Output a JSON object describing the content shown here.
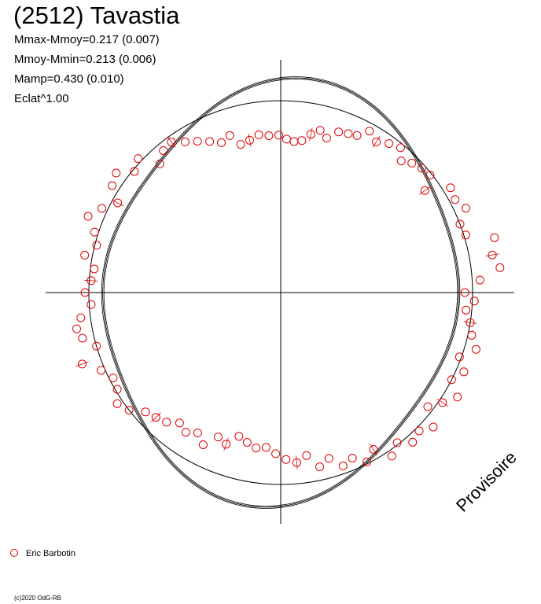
{
  "header": {
    "title": "(2512) Tavastia",
    "stats": [
      "Mmax-Mmoy=0.217 (0.007)",
      "Mmoy-Mmin=0.213 (0.006)",
      "Mamp=0.430 (0.010)",
      "Eclat^1.00"
    ]
  },
  "legend": {
    "observer": "Eric Barbotin"
  },
  "footer": {
    "copyright": "(c)2020 OdG-RB"
  },
  "watermark": "Provisoire",
  "chart_data": {
    "type": "scatter",
    "coordinate_system": "polar (rotational phase around center, brightness as radius)",
    "grid": false,
    "axes": "cross through center",
    "series": [
      {
        "name": "Eric Barbotin",
        "marker": "open-circle",
        "color": "#e00000",
        "points": [
          {
            "phase": 0.0,
            "r": 0.96
          },
          {
            "phase": 0.01,
            "r": 1.04
          },
          {
            "phase": 0.018,
            "r": 1.15
          },
          {
            "phase": 0.028,
            "r": 1.12
          },
          {
            "phase": 0.04,
            "r": 1.15
          },
          {
            "phase": 0.048,
            "r": 1.01
          },
          {
            "phase": 0.058,
            "r": 1.0
          },
          {
            "phase": 0.068,
            "r": 1.06
          },
          {
            "phase": 0.078,
            "r": 1.03
          },
          {
            "phase": 0.088,
            "r": 1.04
          },
          {
            "phase": 0.098,
            "r": 0.92
          },
          {
            "phase": 0.106,
            "r": 0.99
          },
          {
            "phase": 0.115,
            "r": 0.98
          },
          {
            "phase": 0.124,
            "r": 0.96
          },
          {
            "phase": 0.132,
            "r": 0.93
          },
          {
            "phase": 0.14,
            "r": 0.98
          },
          {
            "phase": 0.15,
            "r": 0.96
          },
          {
            "phase": 0.16,
            "r": 0.93
          },
          {
            "phase": 0.17,
            "r": 0.96
          },
          {
            "phase": 0.178,
            "r": 0.91
          },
          {
            "phase": 0.186,
            "r": 0.9
          },
          {
            "phase": 0.195,
            "r": 0.89
          },
          {
            "phase": 0.204,
            "r": 0.84
          },
          {
            "phase": 0.212,
            "r": 0.87
          },
          {
            "phase": 0.22,
            "r": 0.84
          },
          {
            "phase": 0.228,
            "r": 0.8
          },
          {
            "phase": 0.236,
            "r": 0.79
          },
          {
            "phase": 0.244,
            "r": 0.8
          },
          {
            "phase": 0.252,
            "r": 0.82
          },
          {
            "phase": 0.262,
            "r": 0.82
          },
          {
            "phase": 0.272,
            "r": 0.83
          },
          {
            "phase": 0.282,
            "r": 0.81
          },
          {
            "phase": 0.292,
            "r": 0.8
          },
          {
            "phase": 0.3,
            "r": 0.86
          },
          {
            "phase": 0.31,
            "r": 0.84
          },
          {
            "phase": 0.32,
            "r": 0.87
          },
          {
            "phase": 0.33,
            "r": 0.9
          },
          {
            "phase": 0.34,
            "r": 0.93
          },
          {
            "phase": 0.35,
            "r": 0.97
          },
          {
            "phase": 0.36,
            "r": 0.96
          },
          {
            "phase": 0.37,
            "r": 0.92
          },
          {
            "phase": 0.38,
            "r": 1.02
          },
          {
            "phase": 0.39,
            "r": 0.99
          },
          {
            "phase": 0.4,
            "r": 1.06
          },
          {
            "phase": 0.41,
            "r": 1.04
          },
          {
            "phase": 0.42,
            "r": 0.97
          },
          {
            "phase": 0.43,
            "r": 1.03
          },
          {
            "phase": 0.44,
            "r": 1.08
          },
          {
            "phase": 0.45,
            "r": 1.02
          },
          {
            "phase": 0.46,
            "r": 0.99
          },
          {
            "phase": 0.47,
            "r": 1.04
          },
          {
            "phase": 0.48,
            "r": 0.98
          },
          {
            "phase": 0.49,
            "r": 0.99
          },
          {
            "phase": 0.5,
            "r": 1.02
          },
          {
            "phase": 0.51,
            "r": 0.99
          },
          {
            "phase": 0.52,
            "r": 1.05
          },
          {
            "phase": 0.528,
            "r": 1.08
          },
          {
            "phase": 0.536,
            "r": 1.06
          },
          {
            "phase": 0.545,
            "r": 1.0
          },
          {
            "phase": 0.555,
            "r": 1.1
          },
          {
            "phase": 0.565,
            "r": 1.02
          },
          {
            "phase": 0.575,
            "r": 0.98
          },
          {
            "phase": 0.585,
            "r": 0.99
          },
          {
            "phase": 0.595,
            "r": 1.03
          },
          {
            "phase": 0.605,
            "r": 1.0
          },
          {
            "phase": 0.615,
            "r": 0.94
          },
          {
            "phase": 0.625,
            "r": 0.92
          },
          {
            "phase": 0.635,
            "r": 0.9
          },
          {
            "phase": 0.645,
            "r": 0.86
          },
          {
            "phase": 0.655,
            "r": 0.88
          },
          {
            "phase": 0.665,
            "r": 0.85
          },
          {
            "phase": 0.675,
            "r": 0.89
          },
          {
            "phase": 0.685,
            "r": 0.82
          },
          {
            "phase": 0.695,
            "r": 0.84
          },
          {
            "phase": 0.705,
            "r": 0.78
          },
          {
            "phase": 0.715,
            "r": 0.8
          },
          {
            "phase": 0.725,
            "r": 0.82
          },
          {
            "phase": 0.735,
            "r": 0.81
          },
          {
            "phase": 0.745,
            "r": 0.84
          },
          {
            "phase": 0.755,
            "r": 0.87
          },
          {
            "phase": 0.765,
            "r": 0.89
          },
          {
            "phase": 0.775,
            "r": 0.86
          },
          {
            "phase": 0.785,
            "r": 0.93
          },
          {
            "phase": 0.795,
            "r": 0.9
          },
          {
            "phase": 0.805,
            "r": 0.96
          },
          {
            "phase": 0.815,
            "r": 0.94
          },
          {
            "phase": 0.825,
            "r": 0.99
          },
          {
            "phase": 0.835,
            "r": 0.95
          },
          {
            "phase": 0.845,
            "r": 1.03
          },
          {
            "phase": 0.855,
            "r": 0.99
          },
          {
            "phase": 0.865,
            "r": 1.04
          },
          {
            "phase": 0.875,
            "r": 1.02
          },
          {
            "phase": 0.885,
            "r": 1.06
          },
          {
            "phase": 0.895,
            "r": 0.97
          },
          {
            "phase": 0.905,
            "r": 1.02
          },
          {
            "phase": 0.915,
            "r": 1.07
          },
          {
            "phase": 0.925,
            "r": 1.0
          },
          {
            "phase": 0.935,
            "r": 1.04
          },
          {
            "phase": 0.945,
            "r": 0.99
          },
          {
            "phase": 0.955,
            "r": 1.06
          },
          {
            "phase": 0.965,
            "r": 1.02
          },
          {
            "phase": 0.975,
            "r": 1.0
          },
          {
            "phase": 0.985,
            "r": 0.97
          },
          {
            "phase": 0.993,
            "r": 1.01
          }
        ]
      }
    ]
  }
}
